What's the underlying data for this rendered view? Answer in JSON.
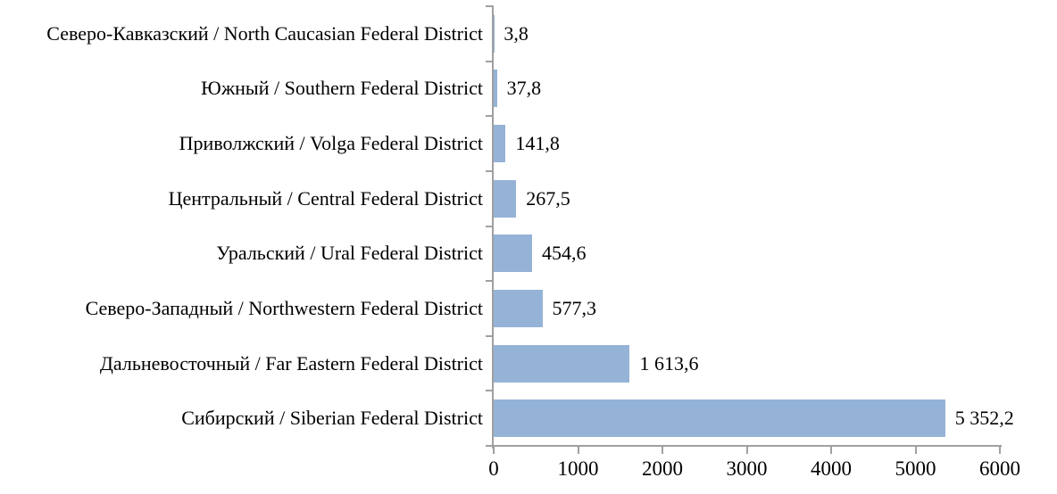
{
  "chart_data": {
    "type": "bar",
    "orientation": "horizontal",
    "title": "",
    "xlabel": "",
    "ylabel": "",
    "categories": [
      "Северо-Кавказский / North Caucasian Federal District",
      "Южный / Southern Federal District",
      "Приволжский / Volga Federal District",
      "Центральный / Central Federal District",
      "Уральский / Ural Federal District",
      "Северо-Западный / Northwestern Federal District",
      "Дальневосточный / Far Eastern Federal District",
      "Сибирский / Siberian Federal District"
    ],
    "values": [
      3.8,
      37.8,
      141.8,
      267.5,
      454.6,
      577.3,
      1613.6,
      5352.2
    ],
    "value_labels": [
      "3,8",
      "37,8",
      "141,8",
      "267,5",
      "454,6",
      "577,3",
      "1 613,6",
      "5 352,2"
    ],
    "x_ticks": [
      0,
      1000,
      2000,
      3000,
      4000,
      5000,
      6000
    ],
    "x_tick_labels": [
      "0",
      "1000",
      "2000",
      "3000",
      "4000",
      "5000",
      "6000"
    ],
    "xlim": [
      0,
      6000
    ],
    "grid": false,
    "legend": false,
    "colors": {
      "bar": "#95B3D7",
      "axis": "#A0A0A0",
      "text": "#000000"
    }
  }
}
